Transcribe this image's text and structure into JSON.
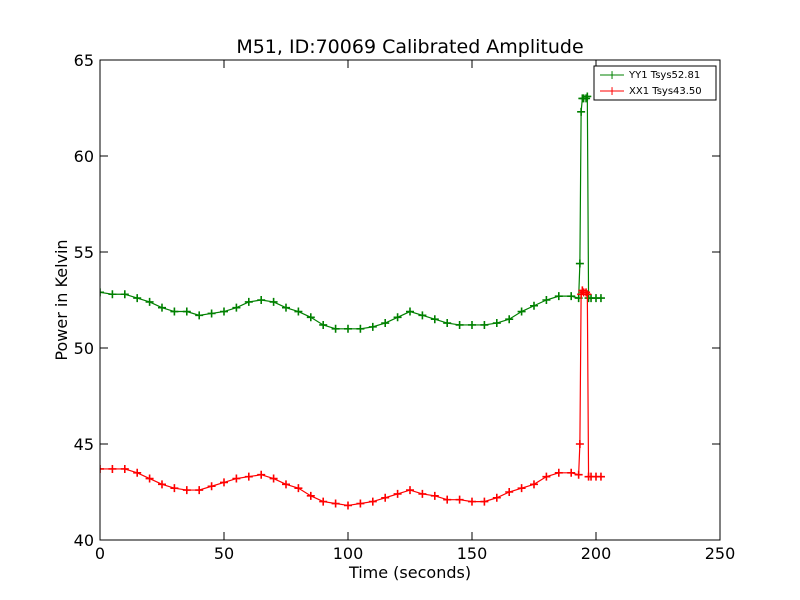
{
  "chart_data": {
    "type": "line",
    "title": "M51, ID:70069 Calibrated Amplitude",
    "xlabel": "Time (seconds)",
    "ylabel": "Power in Kelvin",
    "xlim": [
      0,
      250
    ],
    "ylim": [
      40,
      65
    ],
    "xticks": [
      0,
      50,
      100,
      150,
      200,
      250
    ],
    "yticks": [
      40,
      45,
      50,
      55,
      60,
      65
    ],
    "grid": false,
    "legend_position": "top-right",
    "series": [
      {
        "name": "YY1 Tsys52.81",
        "color": "#008000",
        "marker": "+",
        "x": [
          0,
          5,
          10,
          15,
          20,
          25,
          30,
          35,
          40,
          45,
          50,
          55,
          60,
          65,
          70,
          75,
          80,
          85,
          90,
          95,
          100,
          105,
          110,
          115,
          120,
          125,
          130,
          135,
          140,
          145,
          150,
          155,
          160,
          165,
          170,
          175,
          180,
          185,
          190,
          193,
          193.5,
          194,
          194.5,
          195,
          196,
          196.5,
          197,
          198,
          200,
          202
        ],
        "y": [
          52.9,
          52.8,
          52.8,
          52.6,
          52.4,
          52.1,
          51.9,
          51.9,
          51.7,
          51.8,
          51.9,
          52.1,
          52.4,
          52.5,
          52.4,
          52.1,
          51.9,
          51.6,
          51.2,
          51.0,
          51.0,
          51.0,
          51.1,
          51.3,
          51.6,
          51.9,
          51.7,
          51.5,
          51.3,
          51.2,
          51.2,
          51.2,
          51.3,
          51.5,
          51.9,
          52.2,
          52.5,
          52.7,
          52.7,
          52.6,
          54.4,
          62.3,
          63.0,
          63.0,
          63.0,
          63.1,
          52.6,
          52.6,
          52.6,
          52.6
        ]
      },
      {
        "name": "XX1 Tsys43.50",
        "color": "#ff0000",
        "marker": "+",
        "x": [
          0,
          5,
          10,
          15,
          20,
          25,
          30,
          35,
          40,
          45,
          50,
          55,
          60,
          65,
          70,
          75,
          80,
          85,
          90,
          95,
          100,
          105,
          110,
          115,
          120,
          125,
          130,
          135,
          140,
          145,
          150,
          155,
          160,
          165,
          170,
          175,
          180,
          185,
          190,
          193,
          193.5,
          194,
          194.5,
          195,
          196,
          196.5,
          197,
          198,
          200,
          202
        ],
        "y": [
          43.7,
          43.7,
          43.7,
          43.5,
          43.2,
          42.9,
          42.7,
          42.6,
          42.6,
          42.8,
          43.0,
          43.2,
          43.3,
          43.4,
          43.2,
          42.9,
          42.7,
          42.3,
          42.0,
          41.9,
          41.8,
          41.9,
          42.0,
          42.2,
          42.4,
          42.6,
          42.4,
          42.3,
          42.1,
          42.1,
          42.0,
          42.0,
          42.2,
          42.5,
          42.7,
          42.9,
          43.3,
          43.5,
          43.5,
          43.4,
          45.0,
          52.8,
          53.0,
          52.9,
          52.9,
          52.8,
          43.3,
          43.3,
          43.3,
          43.3
        ]
      }
    ]
  }
}
